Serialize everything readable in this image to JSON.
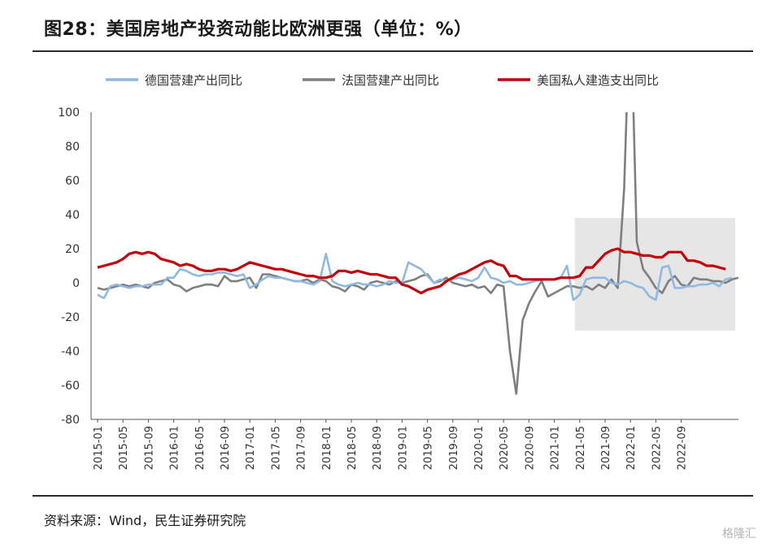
{
  "header": {
    "title": "图28：美国房地产投资动能比欧洲更强（单位：%）"
  },
  "footer": {
    "source": "资料来源：Wind，民生证券研究院",
    "watermark": "格隆汇"
  },
  "chart_data": {
    "type": "line",
    "title": "图28：美国房地产投资动能比欧洲更强（单位：%）",
    "xlabel": "",
    "ylabel": "",
    "ylim": [
      -80,
      100
    ],
    "yticks": [
      100,
      80,
      60,
      40,
      20,
      0,
      -20,
      -40,
      -60,
      -80
    ],
    "x_start": "2015-01",
    "x_end": "2022-11",
    "x_tick_labels": [
      "2015-01",
      "2015-05",
      "2015-09",
      "2016-01",
      "2016-05",
      "2016-09",
      "2017-01",
      "2017-05",
      "2017-09",
      "2018-01",
      "2018-05",
      "2018-09",
      "2019-01",
      "2019-05",
      "2019-09",
      "2020-01",
      "2020-05",
      "2020-09",
      "2021-01",
      "2021-05",
      "2021-09",
      "2022-01",
      "2022-05",
      "2022-09"
    ],
    "legend_position": "top",
    "grid": false,
    "highlight_region": {
      "x_from": "2021-05",
      "x_to": "2022-11",
      "y_from": -28,
      "y_to": 38,
      "color": "#e6e6e6"
    },
    "series": [
      {
        "name": "德国营建产出同比",
        "color": "#8fb9e0",
        "values": [
          -7,
          -9,
          -2,
          -1,
          -2,
          -3,
          -2,
          -2,
          -1,
          -1,
          -1,
          3,
          3,
          8,
          7,
          5,
          4,
          5,
          5,
          6,
          6,
          5,
          4,
          5,
          -3,
          -1,
          2,
          4,
          3,
          3,
          2,
          1,
          1,
          0,
          -1,
          1,
          17,
          1,
          -1,
          -2,
          -1,
          0,
          -1,
          -1,
          -2,
          -1,
          1,
          0,
          0,
          12,
          10,
          8,
          4,
          0,
          2,
          1,
          2,
          3,
          2,
          1,
          3,
          9,
          3,
          2,
          0,
          1,
          -1,
          -1,
          0,
          1,
          2,
          2,
          2,
          3,
          10,
          -10,
          -7,
          2,
          3,
          3,
          3,
          0,
          -1,
          1,
          0,
          -2,
          -3,
          -8,
          -10,
          9,
          10,
          -3,
          -3,
          -2,
          -2,
          -1,
          -1,
          0,
          -2,
          2,
          3
        ]
      },
      {
        "name": "法国营建产出同比",
        "color": "#7f7f7f",
        "values": [
          -3,
          -4,
          -3,
          -2,
          -1,
          -2,
          -1,
          -2,
          -3,
          0,
          1,
          2,
          -1,
          -2,
          -5,
          -3,
          -2,
          -1,
          -1,
          -2,
          4,
          1,
          1,
          2,
          3,
          -3,
          5,
          5,
          4,
          3,
          2,
          1,
          1,
          2,
          0,
          2,
          1,
          -2,
          -3,
          -5,
          -1,
          -2,
          -4,
          0,
          1,
          0,
          -1,
          1,
          0,
          1,
          2,
          4,
          5,
          0,
          1,
          3,
          0,
          -1,
          -2,
          -1,
          -3,
          -2,
          -6,
          -1,
          -2,
          -40,
          -65,
          -22,
          -12,
          -5,
          1,
          -8,
          -6,
          -4,
          -2,
          -2,
          -3,
          -2,
          -4,
          -1,
          -3,
          2,
          -3,
          55,
          170,
          24,
          8,
          3,
          -3,
          -6,
          1,
          4,
          -1,
          -2,
          3,
          2,
          2,
          1,
          1,
          0,
          2,
          3
        ]
      },
      {
        "name": "美国私人建造支出同比",
        "color": "#c0000b",
        "values": [
          9,
          10,
          11,
          12,
          14,
          17,
          18,
          17,
          18,
          17,
          14,
          13,
          12,
          10,
          11,
          10,
          8,
          7,
          7,
          8,
          8,
          7,
          8,
          10,
          12,
          11,
          10,
          9,
          8,
          8,
          7,
          6,
          5,
          4,
          4,
          3,
          3,
          4,
          7,
          7,
          6,
          7,
          6,
          5,
          5,
          4,
          3,
          3,
          -1,
          -2,
          -4,
          -6,
          -4,
          -3,
          -2,
          1,
          3,
          5,
          6,
          8,
          10,
          12,
          13,
          11,
          10,
          4,
          4,
          2,
          2,
          2,
          2,
          2,
          2,
          3,
          3,
          3,
          4,
          9,
          9,
          13,
          17,
          19,
          20,
          18,
          18,
          17,
          16,
          16,
          15,
          15,
          18,
          18,
          18,
          13,
          13,
          12,
          10,
          10,
          9,
          8
        ]
      }
    ]
  }
}
